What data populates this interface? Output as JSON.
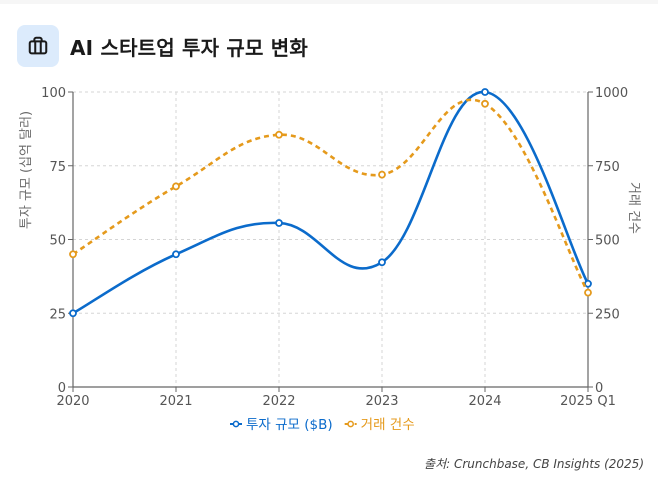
{
  "header": {
    "title": "AI 스타트업 투자 규모 변화",
    "icon": "briefcase-icon"
  },
  "source": "출처: Crunchbase, CB Insights (2025)",
  "colors": {
    "investment": "#0b6bcb",
    "deals": "#e59a1c",
    "icon_bg": "#dcebfc"
  },
  "chart_data": {
    "type": "line",
    "title": "AI 스타트업 투자 규모 변화",
    "categories": [
      "2020",
      "2021",
      "2022",
      "2023",
      "2024",
      "2025 Q1"
    ],
    "series": [
      {
        "name": "투자 규모 ($B)",
        "axis": "left",
        "style": "solid",
        "values": [
          25,
          45,
          55.6,
          42.3,
          100,
          35
        ]
      },
      {
        "name": "거래 건수",
        "axis": "right",
        "style": "dashed",
        "values": [
          450,
          680,
          855,
          720,
          960,
          320
        ]
      }
    ],
    "left_axis": {
      "label": "투자 규모 (십억 달러)",
      "range": [
        0,
        100
      ],
      "ticks": [
        "0",
        "25",
        "50",
        "75",
        "100"
      ]
    },
    "right_axis": {
      "label": "거래 건수",
      "range": [
        0,
        1000
      ],
      "ticks": [
        "0",
        "250",
        "500",
        "750",
        "1000"
      ]
    },
    "grid": true,
    "legend_position": "bottom-center"
  }
}
